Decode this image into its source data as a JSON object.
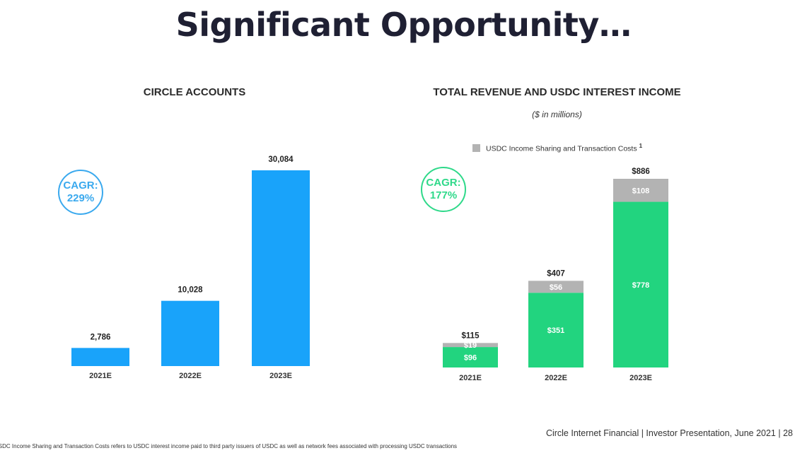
{
  "title": "Significant Opportunity…",
  "footer": {
    "source": "Circle Internet Financial | Investor Presentation, June 2021 | 28",
    "footnote": "USDC Income Sharing and Transaction Costs refers to USDC interest income paid to third party issuers of USDC as well as network fees associated with processing USDC transactions"
  },
  "colors": {
    "blue": "#19a3fa",
    "green": "#22d47f",
    "gray": "#b3b3b3",
    "cagr_blue": "#3aa9ee",
    "cagr_green": "#2fd98a"
  },
  "chart_data": [
    {
      "type": "bar",
      "title": "CIRCLE ACCOUNTS",
      "categories": [
        "2021E",
        "2022E",
        "2023E"
      ],
      "values": [
        2786,
        10028,
        30084
      ],
      "value_labels": [
        "2,786",
        "10,028",
        "30,084"
      ],
      "ylim": [
        0,
        30084
      ],
      "grid": false,
      "cagr_label": "CAGR:",
      "cagr_value": "229%"
    },
    {
      "type": "bar",
      "stacked": true,
      "title": "TOTAL REVENUE AND USDC INTEREST INCOME",
      "subtitle": "($ in millions)",
      "categories": [
        "2021E",
        "2022E",
        "2023E"
      ],
      "series": [
        {
          "values": [
            96,
            351,
            778
          ],
          "labels": [
            "$96",
            "$351",
            "$778"
          ]
        },
        {
          "name": "USDC Income Sharing and Transaction Costs",
          "values": [
            19,
            56,
            108
          ],
          "labels": [
            "$19",
            "$56",
            "$108"
          ]
        }
      ],
      "totals": [
        115,
        407,
        886
      ],
      "total_labels": [
        "$115",
        "$407",
        "$886"
      ],
      "legend_note": "1",
      "legend_position": "top",
      "ylim": [
        0,
        886
      ],
      "grid": false,
      "cagr_label": "CAGR:",
      "cagr_value": "177%"
    }
  ]
}
